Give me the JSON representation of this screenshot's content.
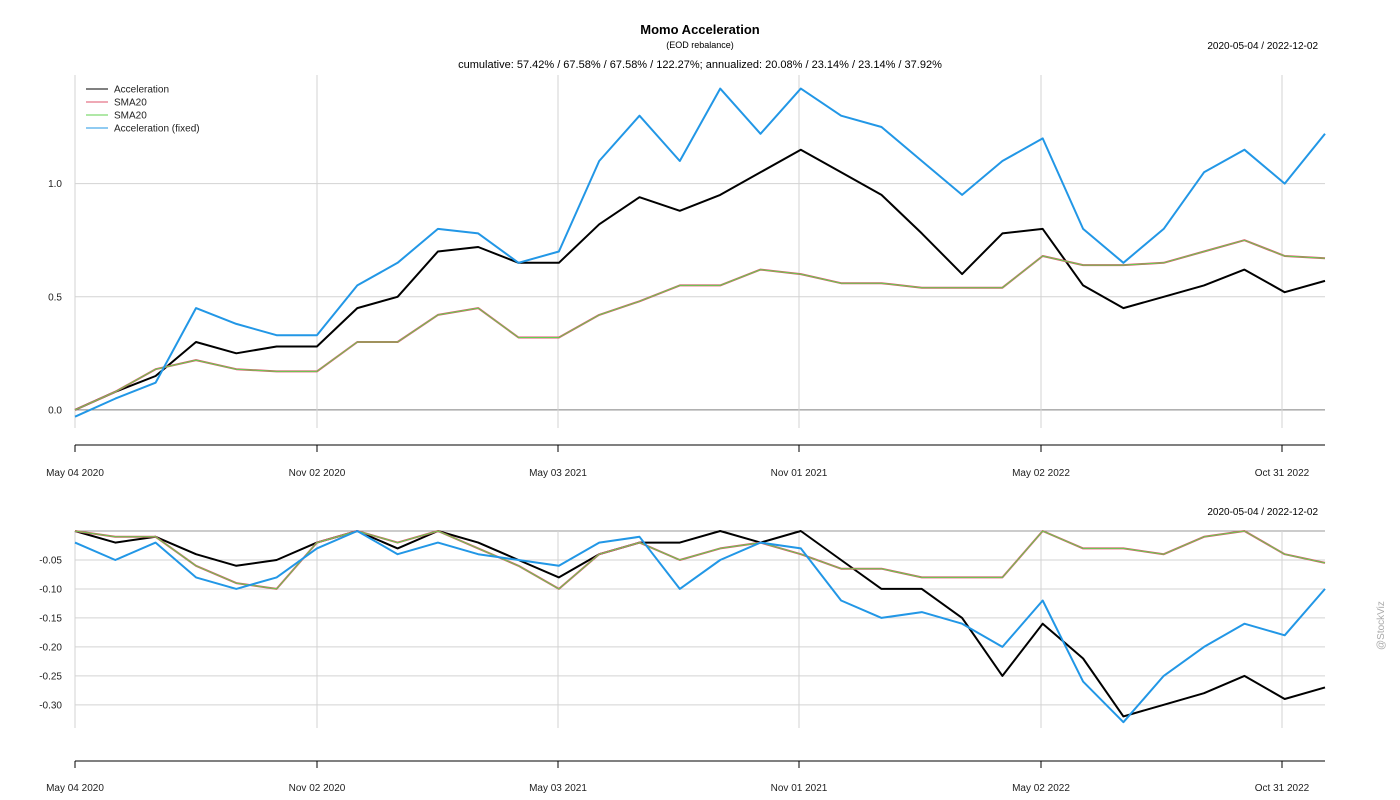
{
  "title": "Momo Acceleration",
  "subtitle": "(EOD rebalance)",
  "summary": "cumulative: 57.42% / 67.58% / 67.58% / 122.27%; annualized: 20.08% / 23.14% / 23.14% / 37.92%",
  "date_range_top": "2020-05-04 / 2022-12-02",
  "date_range_bottom": "2020-05-04 / 2022-12-02",
  "watermark": "@StockViz",
  "colors": {
    "acceleration": "#000000",
    "sma20_a": "#df536b",
    "sma20_b": "#61d04f",
    "acceleration_fixed": "#2297e6",
    "grid": "#d3d3d3"
  },
  "chart_data": [
    {
      "type": "line",
      "name": "cumulative-returns",
      "x": [
        "2020-05-04",
        "2020-06-01",
        "2020-07-01",
        "2020-08-03",
        "2020-09-01",
        "2020-10-01",
        "2020-11-02",
        "2020-12-01",
        "2021-01-01",
        "2021-02-01",
        "2021-03-01",
        "2021-04-01",
        "2021-05-03",
        "2021-06-01",
        "2021-07-01",
        "2021-08-02",
        "2021-09-01",
        "2021-10-01",
        "2021-11-01",
        "2021-12-01",
        "2022-01-03",
        "2022-02-01",
        "2022-03-01",
        "2022-04-01",
        "2022-05-02",
        "2022-06-01",
        "2022-07-01",
        "2022-08-01",
        "2022-09-01",
        "2022-10-03",
        "2022-10-31",
        "2022-12-02"
      ],
      "x_ticks": [
        "May 04 2020",
        "Nov 02 2020",
        "May 03 2021",
        "Nov 01 2021",
        "May 02 2022",
        "Oct 31 2022"
      ],
      "y_ticks": [
        0.0,
        0.5,
        1.0
      ],
      "y_tick_labels": [
        "0.0",
        "0.5",
        "1.0"
      ],
      "ylim": [
        -0.08,
        1.48
      ],
      "legend": [
        "Acceleration",
        "SMA20",
        "SMA20",
        "Acceleration (fixed)"
      ],
      "legend_position": "top-left",
      "series": [
        {
          "name": "Acceleration",
          "values": [
            0.0,
            0.08,
            0.15,
            0.3,
            0.25,
            0.28,
            0.28,
            0.45,
            0.5,
            0.7,
            0.72,
            0.65,
            0.65,
            0.82,
            0.94,
            0.88,
            0.95,
            1.05,
            1.15,
            1.05,
            0.95,
            0.78,
            0.6,
            0.78,
            0.8,
            0.55,
            0.45,
            0.5,
            0.55,
            0.62,
            0.52,
            0.57
          ]
        },
        {
          "name": "SMA20",
          "values": [
            0.0,
            0.08,
            0.18,
            0.22,
            0.18,
            0.17,
            0.17,
            0.3,
            0.3,
            0.42,
            0.45,
            0.32,
            0.32,
            0.42,
            0.48,
            0.55,
            0.55,
            0.62,
            0.6,
            0.56,
            0.56,
            0.54,
            0.54,
            0.54,
            0.68,
            0.64,
            0.64,
            0.65,
            0.7,
            0.75,
            0.68,
            0.67
          ]
        },
        {
          "name": "SMA20",
          "values": [
            0.0,
            0.08,
            0.18,
            0.22,
            0.18,
            0.17,
            0.17,
            0.3,
            0.3,
            0.42,
            0.45,
            0.32,
            0.32,
            0.42,
            0.48,
            0.55,
            0.55,
            0.62,
            0.6,
            0.56,
            0.56,
            0.54,
            0.54,
            0.54,
            0.68,
            0.64,
            0.64,
            0.65,
            0.7,
            0.75,
            0.68,
            0.67
          ]
        },
        {
          "name": "Acceleration (fixed)",
          "values": [
            -0.03,
            0.05,
            0.12,
            0.45,
            0.38,
            0.33,
            0.33,
            0.55,
            0.65,
            0.8,
            0.78,
            0.65,
            0.7,
            1.1,
            1.3,
            1.1,
            1.42,
            1.22,
            1.42,
            1.3,
            1.25,
            1.1,
            0.95,
            1.1,
            1.2,
            0.8,
            0.65,
            0.8,
            1.05,
            1.15,
            1.0,
            1.22
          ]
        }
      ]
    },
    {
      "type": "line",
      "name": "drawdowns",
      "x": [
        "2020-05-04",
        "2020-06-01",
        "2020-07-01",
        "2020-08-03",
        "2020-09-01",
        "2020-10-01",
        "2020-11-02",
        "2020-12-01",
        "2021-01-01",
        "2021-02-01",
        "2021-03-01",
        "2021-04-01",
        "2021-05-03",
        "2021-06-01",
        "2021-07-01",
        "2021-08-02",
        "2021-09-01",
        "2021-10-01",
        "2021-11-01",
        "2021-12-01",
        "2022-01-03",
        "2022-02-01",
        "2022-03-01",
        "2022-04-01",
        "2022-05-02",
        "2022-06-01",
        "2022-07-01",
        "2022-08-01",
        "2022-09-01",
        "2022-10-03",
        "2022-10-31",
        "2022-12-02"
      ],
      "x_ticks": [
        "May 04 2020",
        "Nov 02 2020",
        "May 03 2021",
        "Nov 01 2021",
        "May 02 2022",
        "Oct 31 2022"
      ],
      "y_ticks": [
        -0.05,
        -0.1,
        -0.15,
        -0.2,
        -0.25,
        -0.3
      ],
      "y_tick_labels": [
        "-0.05",
        "-0.10",
        "-0.15",
        "-0.20",
        "-0.25",
        "-0.30"
      ],
      "ylim": [
        -0.34,
        0.0
      ],
      "series": [
        {
          "name": "Acceleration",
          "values": [
            0.0,
            -0.02,
            -0.01,
            -0.04,
            -0.06,
            -0.05,
            -0.02,
            0.0,
            -0.03,
            0.0,
            -0.02,
            -0.05,
            -0.08,
            -0.04,
            -0.02,
            -0.02,
            0.0,
            -0.02,
            0.0,
            -0.05,
            -0.1,
            -0.1,
            -0.15,
            -0.25,
            -0.16,
            -0.22,
            -0.32,
            -0.3,
            -0.28,
            -0.25,
            -0.29,
            -0.27
          ]
        },
        {
          "name": "SMA20",
          "values": [
            0.0,
            -0.01,
            -0.01,
            -0.06,
            -0.09,
            -0.1,
            -0.02,
            0.0,
            -0.02,
            0.0,
            -0.03,
            -0.06,
            -0.1,
            -0.04,
            -0.02,
            -0.05,
            -0.03,
            -0.02,
            -0.04,
            -0.065,
            -0.065,
            -0.08,
            -0.08,
            -0.08,
            -0.0,
            -0.03,
            -0.03,
            -0.04,
            -0.01,
            0.0,
            -0.04,
            -0.055
          ]
        },
        {
          "name": "SMA20",
          "values": [
            0.0,
            -0.01,
            -0.01,
            -0.06,
            -0.09,
            -0.1,
            -0.02,
            0.0,
            -0.02,
            0.0,
            -0.03,
            -0.06,
            -0.1,
            -0.04,
            -0.02,
            -0.05,
            -0.03,
            -0.02,
            -0.04,
            -0.065,
            -0.065,
            -0.08,
            -0.08,
            -0.08,
            -0.0,
            -0.03,
            -0.03,
            -0.04,
            -0.01,
            0.0,
            -0.04,
            -0.055
          ]
        },
        {
          "name": "Acceleration (fixed)",
          "values": [
            -0.02,
            -0.05,
            -0.02,
            -0.08,
            -0.1,
            -0.08,
            -0.03,
            0.0,
            -0.04,
            -0.02,
            -0.04,
            -0.05,
            -0.06,
            -0.02,
            -0.01,
            -0.1,
            -0.05,
            -0.02,
            -0.03,
            -0.12,
            -0.15,
            -0.14,
            -0.16,
            -0.2,
            -0.12,
            -0.26,
            -0.33,
            -0.25,
            -0.2,
            -0.16,
            -0.18,
            -0.1
          ]
        }
      ]
    }
  ]
}
